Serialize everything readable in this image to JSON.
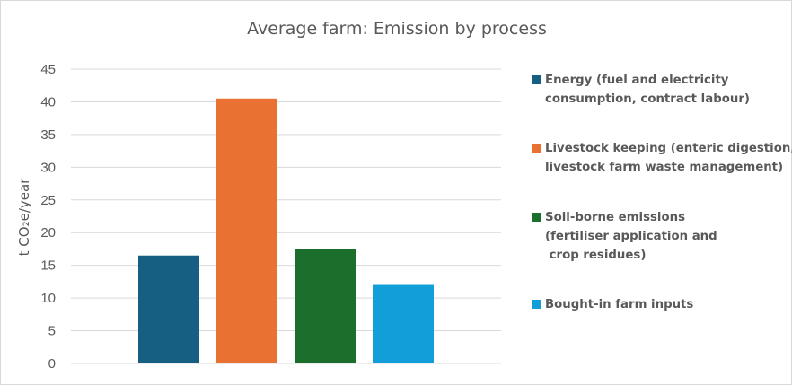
{
  "chart_data": {
    "type": "bar",
    "title": "Average farm: Emission by process",
    "ylabel": "t CO₂e/year",
    "xlabel": "",
    "ylim": [
      0,
      45
    ],
    "yticks": [
      0,
      5,
      10,
      15,
      20,
      25,
      30,
      35,
      40,
      45
    ],
    "grid": true,
    "legend_position": "right",
    "series": [
      {
        "name": "Energy (fuel and electricity\nconsumption, contract labour)",
        "value": 16.5,
        "color": "#175E83"
      },
      {
        "name": "Livestock keeping (enteric digestion,\nlivestock farm waste management)",
        "value": 40.5,
        "color": "#E97132"
      },
      {
        "name": "Soil-borne emissions\n(fertiliser application and\n crop residues)",
        "value": 17.5,
        "color": "#1B6E2B"
      },
      {
        "name": "Bought-in farm inputs",
        "value": 12.0,
        "color": "#129ED9"
      }
    ]
  }
}
